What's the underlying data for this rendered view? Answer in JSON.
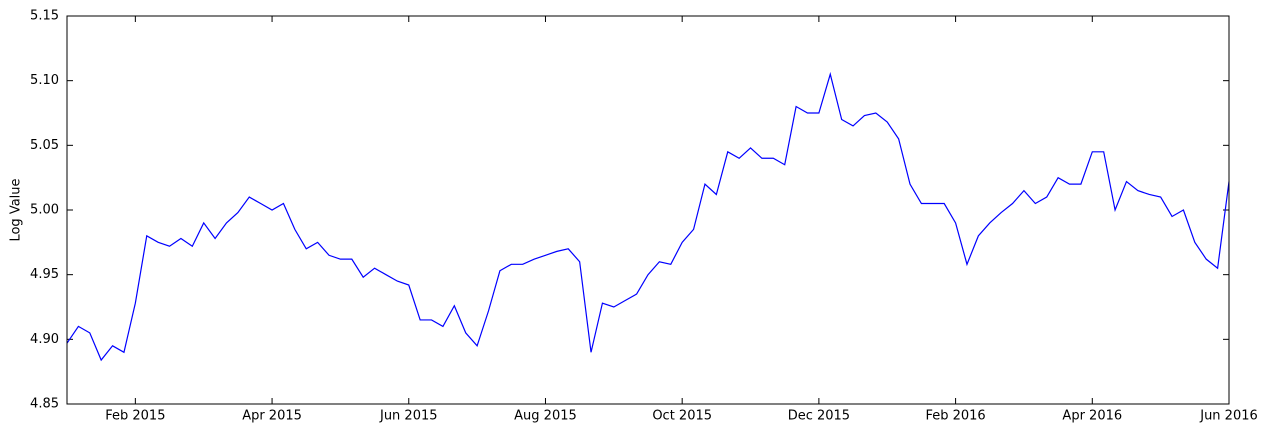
{
  "chart_data": {
    "type": "line",
    "ylabel": "Log Value",
    "categories": [
      null,
      null,
      null,
      null,
      null,
      null,
      "Feb 2015",
      null,
      null,
      null,
      null,
      null,
      null,
      null,
      null,
      null,
      null,
      null,
      "Apr 2015",
      null,
      null,
      null,
      null,
      null,
      null,
      null,
      null,
      null,
      null,
      null,
      "Jun 2015",
      null,
      null,
      null,
      null,
      null,
      null,
      null,
      null,
      null,
      null,
      null,
      "Aug 2015",
      null,
      null,
      null,
      null,
      null,
      null,
      null,
      null,
      null,
      null,
      null,
      "Oct 2015",
      null,
      null,
      null,
      null,
      null,
      null,
      null,
      null,
      null,
      null,
      null,
      "Dec 2015",
      null,
      null,
      null,
      null,
      null,
      null,
      null,
      null,
      null,
      null,
      null,
      "Feb 2016",
      null,
      null,
      null,
      null,
      null,
      null,
      null,
      null,
      null,
      null,
      null,
      "Apr 2016",
      null,
      null,
      null,
      null,
      null,
      null,
      null,
      null,
      null,
      null,
      null,
      "Jun 2016"
    ],
    "values": [
      4.897,
      4.91,
      4.905,
      4.884,
      4.895,
      4.89,
      4.928,
      4.98,
      4.975,
      4.972,
      4.978,
      4.972,
      4.99,
      4.978,
      4.99,
      4.998,
      5.01,
      5.005,
      5.0,
      5.005,
      4.985,
      4.97,
      4.975,
      4.965,
      4.962,
      4.962,
      4.948,
      4.955,
      4.95,
      4.945,
      4.942,
      4.915,
      4.915,
      4.91,
      4.926,
      4.905,
      4.895,
      4.922,
      4.953,
      4.958,
      4.958,
      4.962,
      4.965,
      4.968,
      4.97,
      4.96,
      4.89,
      4.928,
      4.925,
      4.93,
      4.935,
      4.95,
      4.96,
      4.958,
      4.975,
      4.985,
      5.02,
      5.012,
      5.045,
      5.04,
      5.048,
      5.04,
      5.04,
      5.035,
      5.08,
      5.075,
      5.075,
      5.105,
      5.07,
      5.065,
      5.073,
      5.075,
      5.068,
      5.055,
      5.02,
      5.005,
      5.005,
      5.005,
      4.99,
      4.958,
      4.98,
      4.99,
      4.998,
      5.005,
      5.015,
      5.005,
      5.01,
      5.025,
      5.02,
      5.02,
      5.045,
      5.045,
      5.0,
      5.022,
      5.015,
      5.012,
      5.01,
      4.995,
      5.0,
      4.975,
      4.962,
      4.955,
      5.022
    ],
    "color": "#0000ff",
    "ylim": [
      4.85,
      5.15
    ],
    "yticks": [
      4.85,
      {
        "value": 4.9,
        "label": "4.90"
      },
      4.95,
      {
        "value": 5.0,
        "label": "5.00"
      },
      5.05,
      {
        "value": 5.1,
        "label": "5.10"
      },
      5.15
    ]
  }
}
